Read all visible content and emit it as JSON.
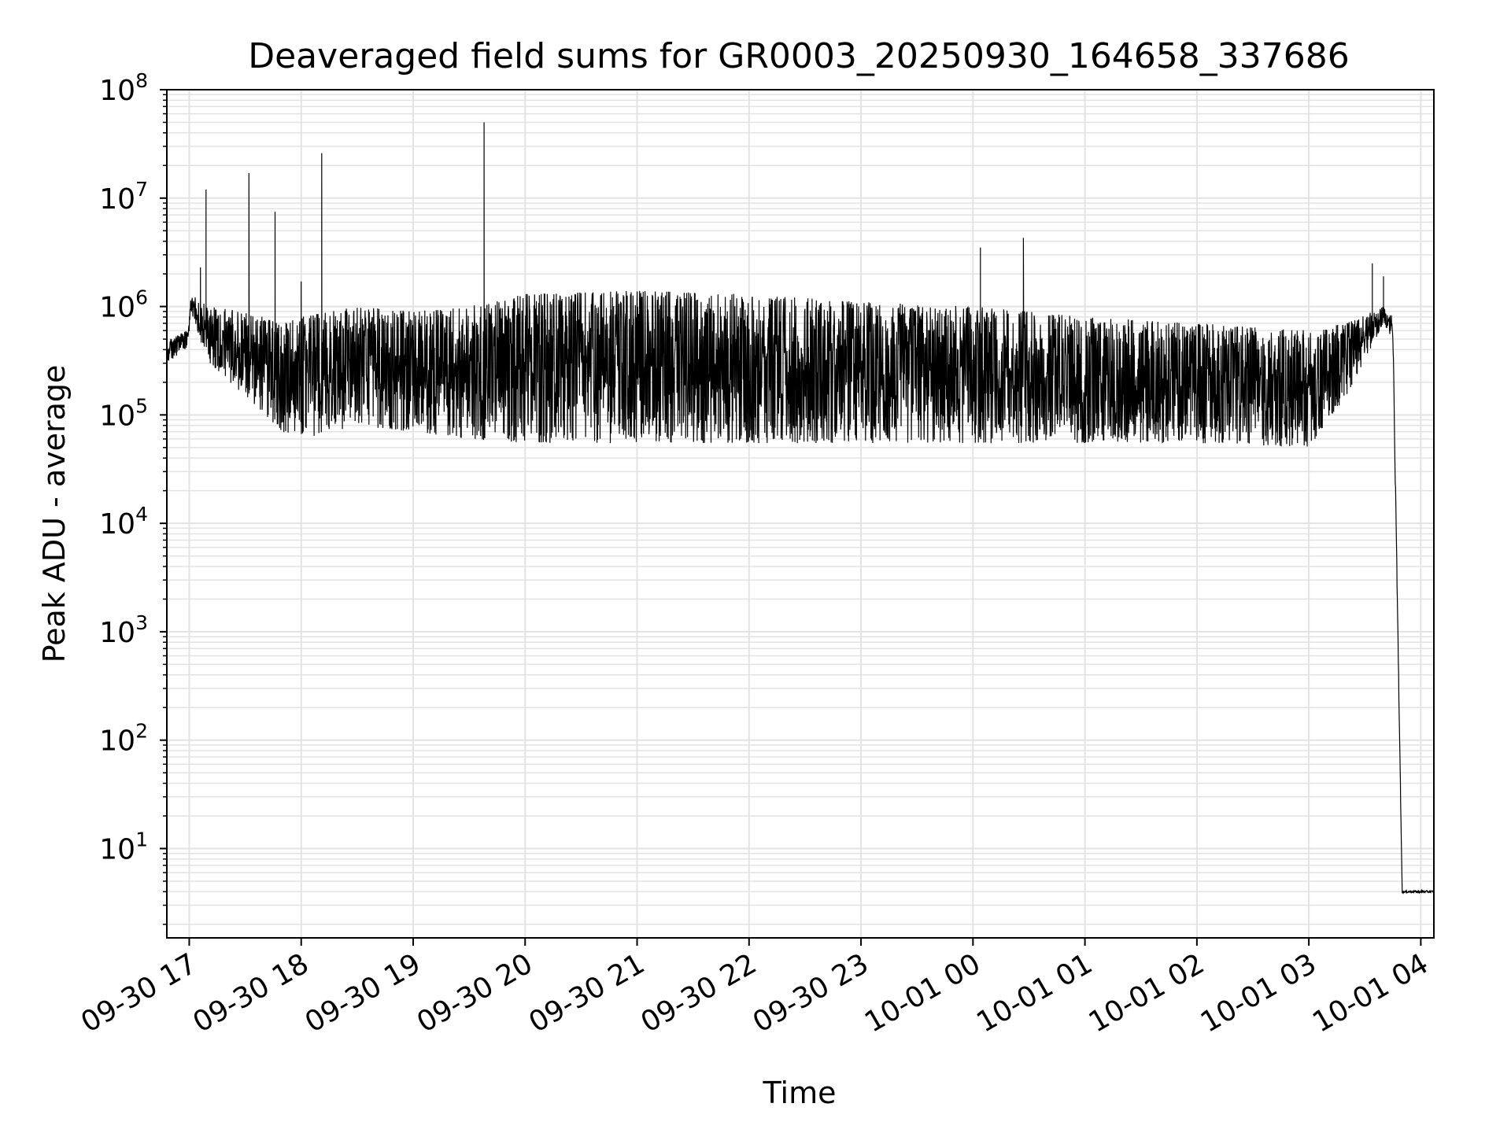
{
  "chart_data": {
    "type": "line",
    "title": "Deaveraged field sums for GR0003_20250930_164658_337686",
    "xlabel": "Time",
    "ylabel": "Peak ADU - average",
    "yscale": "log",
    "ylim": [
      1.5,
      100000000
    ],
    "xlim": [
      "2025-09-30 16:48",
      "2025-10-01 04:07"
    ],
    "grid": "on (major and minor)",
    "legend": "none",
    "line_color": "#000000",
    "x_ticks": [
      {
        "t": "2025-09-30 17:00",
        "label": "09-30 17"
      },
      {
        "t": "2025-09-30 18:00",
        "label": "09-30 18"
      },
      {
        "t": "2025-09-30 19:00",
        "label": "09-30 19"
      },
      {
        "t": "2025-09-30 20:00",
        "label": "09-30 20"
      },
      {
        "t": "2025-09-30 21:00",
        "label": "09-30 21"
      },
      {
        "t": "2025-09-30 22:00",
        "label": "09-30 22"
      },
      {
        "t": "2025-09-30 23:00",
        "label": "09-30 23"
      },
      {
        "t": "2025-10-01 00:00",
        "label": "10-01 00"
      },
      {
        "t": "2025-10-01 01:00",
        "label": "10-01 01"
      },
      {
        "t": "2025-10-01 02:00",
        "label": "10-01 02"
      },
      {
        "t": "2025-10-01 03:00",
        "label": "10-01 03"
      },
      {
        "t": "2025-10-01 04:00",
        "label": "10-01 04"
      }
    ],
    "y_ticks": [
      {
        "value": 10,
        "base": "10",
        "exp": "1"
      },
      {
        "value": 100,
        "base": "10",
        "exp": "2"
      },
      {
        "value": 1000,
        "base": "10",
        "exp": "3"
      },
      {
        "value": 10000,
        "base": "10",
        "exp": "4"
      },
      {
        "value": 100000,
        "base": "10",
        "exp": "5"
      },
      {
        "value": 1000000,
        "base": "10",
        "exp": "6"
      },
      {
        "value": 10000000,
        "base": "10",
        "exp": "7"
      },
      {
        "value": 100000000,
        "base": "10",
        "exp": "8"
      }
    ],
    "envelope": [
      {
        "t": "2025-09-30 16:48",
        "low": 300000,
        "high": 500000
      },
      {
        "t": "2025-09-30 16:59",
        "low": 400000,
        "high": 600000
      },
      {
        "t": "2025-09-30 17:01",
        "low": 900000,
        "high": 1300000
      },
      {
        "t": "2025-09-30 17:10",
        "low": 300000,
        "high": 1000000
      },
      {
        "t": "2025-09-30 17:30",
        "low": 150000,
        "high": 900000
      },
      {
        "t": "2025-09-30 17:50",
        "low": 70000,
        "high": 700000
      },
      {
        "t": "2025-09-30 18:00",
        "low": 60000,
        "high": 800000
      },
      {
        "t": "2025-09-30 18:30",
        "low": 80000,
        "high": 1000000
      },
      {
        "t": "2025-09-30 19:00",
        "low": 70000,
        "high": 900000
      },
      {
        "t": "2025-09-30 19:30",
        "low": 60000,
        "high": 1000000
      },
      {
        "t": "2025-09-30 20:00",
        "low": 55000,
        "high": 1300000
      },
      {
        "t": "2025-09-30 21:00",
        "low": 55000,
        "high": 1400000
      },
      {
        "t": "2025-09-30 22:00",
        "low": 55000,
        "high": 1300000
      },
      {
        "t": "2025-09-30 23:00",
        "low": 55000,
        "high": 1100000
      },
      {
        "t": "2025-10-01 00:00",
        "low": 55000,
        "high": 1000000
      },
      {
        "t": "2025-10-01 01:00",
        "low": 55000,
        "high": 800000
      },
      {
        "t": "2025-10-01 02:00",
        "low": 55000,
        "high": 700000
      },
      {
        "t": "2025-10-01 03:00",
        "low": 50000,
        "high": 600000
      },
      {
        "t": "2025-10-01 03:20",
        "low": 150000,
        "high": 700000
      },
      {
        "t": "2025-10-01 03:40",
        "low": 700000,
        "high": 1000000
      },
      {
        "t": "2025-10-01 03:45",
        "low": 500000,
        "high": 800000
      },
      {
        "t": "2025-10-01 03:50",
        "low": 4,
        "high": 4
      },
      {
        "t": "2025-10-01 04:07",
        "low": 4,
        "high": 4
      }
    ],
    "spikes": [
      {
        "t": "2025-09-30 17:09",
        "value": 12000000
      },
      {
        "t": "2025-09-30 17:06",
        "value": 2300000
      },
      {
        "t": "2025-09-30 17:32",
        "value": 17000000
      },
      {
        "t": "2025-09-30 17:46",
        "value": 7500000
      },
      {
        "t": "2025-09-30 18:00",
        "value": 1700000
      },
      {
        "t": "2025-09-30 18:11",
        "value": 26000000
      },
      {
        "t": "2025-09-30 19:38",
        "value": 50000000
      },
      {
        "t": "2025-10-01 00:04",
        "value": 3500000
      },
      {
        "t": "2025-10-01 00:27",
        "value": 4300000
      },
      {
        "t": "2025-10-01 03:34",
        "value": 2500000
      },
      {
        "t": "2025-10-01 03:40",
        "value": 1900000
      }
    ]
  }
}
